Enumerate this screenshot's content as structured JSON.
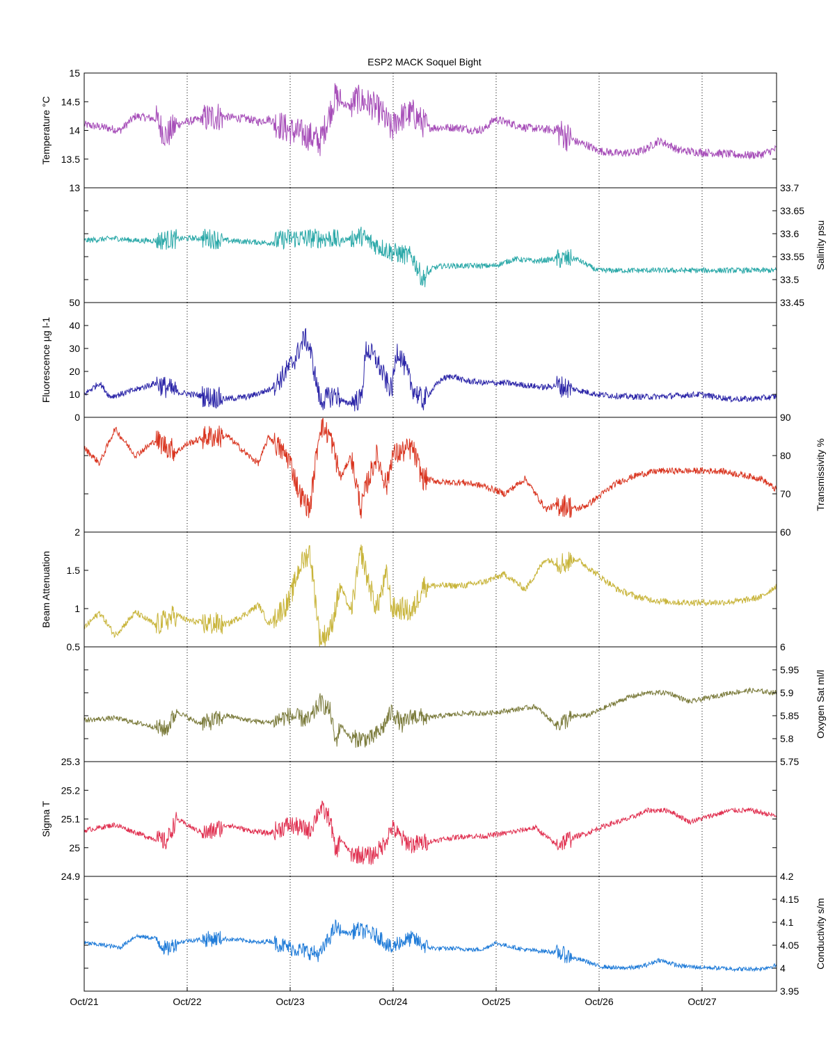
{
  "chart_data": {
    "type": "line",
    "title": "ESP2 MACK  Soquel Bight",
    "x_tick_labels": [
      "Oct/21",
      "Oct/22",
      "Oct/23",
      "Oct/24",
      "Oct/25",
      "Oct/26",
      "Oct/27"
    ],
    "x_range_days": [
      0,
      6.75
    ],
    "grid": "vertical dotted at day boundaries",
    "panels": [
      {
        "name": "Temperature °C",
        "ylabel": "Temperature °C",
        "axis_side": "left",
        "ylim": [
          13,
          15
        ],
        "ticks": [
          13,
          13.5,
          14,
          14.5,
          15
        ],
        "tick_labels": [
          "13",
          "13.5",
          "14",
          "14.5",
          "15"
        ],
        "color": "#a64db8",
        "noise": 0.12,
        "x": [
          0,
          0.2,
          0.35,
          0.5,
          0.7,
          0.8,
          0.9,
          1.0,
          1.3,
          1.6,
          1.7,
          1.8,
          2.0,
          2.2,
          2.3,
          2.45,
          2.5,
          2.6,
          2.65,
          2.8,
          2.9,
          3.0,
          3.05,
          3.2,
          3.35,
          3.45,
          3.6,
          3.7,
          3.8,
          3.9,
          4.0,
          4.3,
          4.6,
          4.7,
          4.8,
          4.9,
          5.0,
          5.2,
          5.4,
          5.5,
          5.6,
          5.7,
          5.8,
          6.0,
          6.2,
          6.4,
          6.5,
          6.6,
          6.75
        ],
        "y": [
          14.1,
          14.05,
          14.0,
          14.25,
          14.2,
          13.9,
          14.1,
          14.15,
          14.25,
          14.2,
          14.15,
          14.2,
          14.0,
          13.9,
          13.8,
          14.6,
          14.5,
          14.4,
          14.55,
          14.45,
          14.3,
          14.0,
          14.2,
          14.3,
          14.05,
          14.05,
          14.05,
          14.04,
          14.0,
          14.02,
          14.2,
          14.05,
          14.0,
          13.9,
          13.8,
          13.75,
          13.65,
          13.6,
          13.62,
          13.7,
          13.82,
          13.75,
          13.65,
          13.62,
          13.6,
          13.57,
          13.57,
          13.58,
          13.68
        ]
      },
      {
        "name": "Salinity psu",
        "ylabel": "Salinity psu",
        "axis_side": "right",
        "ylim": [
          33.45,
          33.7
        ],
        "ticks": [
          33.45,
          33.5,
          33.55,
          33.6,
          33.65,
          33.7
        ],
        "tick_labels": [
          "33.45",
          "33.5",
          "33.55",
          "33.6",
          "33.65",
          "33.7"
        ],
        "color": "#2aa8a8",
        "noise": 0.01,
        "x": [
          0,
          0.3,
          0.5,
          0.7,
          1.0,
          1.2,
          1.4,
          1.8,
          2.0,
          2.2,
          2.4,
          2.5,
          2.7,
          2.8,
          3.0,
          3.2,
          3.3,
          3.4,
          3.5,
          3.6,
          3.8,
          4.0,
          4.2,
          4.4,
          4.6,
          4.8,
          5.0,
          5.2,
          5.4,
          5.6,
          6.0,
          6.4,
          6.75
        ],
        "y": [
          33.585,
          33.59,
          33.585,
          33.585,
          33.59,
          33.59,
          33.585,
          33.58,
          33.59,
          33.59,
          33.59,
          33.585,
          33.595,
          33.58,
          33.56,
          33.55,
          33.5,
          33.525,
          33.53,
          33.53,
          33.53,
          33.53,
          33.545,
          33.54,
          33.545,
          33.545,
          33.52,
          33.52,
          33.52,
          33.52,
          33.52,
          33.52,
          33.52
        ]
      },
      {
        "name": "Fluorescence µg l-1",
        "ylabel": "Fluorescence µg l-1",
        "axis_side": "left",
        "ylim": [
          0,
          50
        ],
        "ticks": [
          0,
          10,
          20,
          30,
          40,
          50
        ],
        "tick_labels": [
          "0",
          "10",
          "20",
          "30",
          "40",
          "50"
        ],
        "color": "#2c26a8",
        "noise": 2.2,
        "x": [
          0,
          0.15,
          0.25,
          0.35,
          0.5,
          0.7,
          0.9,
          1.2,
          1.4,
          1.6,
          1.8,
          1.9,
          2.05,
          2.15,
          2.2,
          2.3,
          2.45,
          2.55,
          2.7,
          2.75,
          2.85,
          2.95,
          3.0,
          3.05,
          3.1,
          3.2,
          3.3,
          3.45,
          3.5,
          3.6,
          3.7,
          3.9,
          4.1,
          4.3,
          4.5,
          4.6,
          4.7,
          4.8,
          4.9,
          5.0,
          5.3,
          5.6,
          6.0,
          6.3,
          6.5,
          6.75
        ],
        "y": [
          10,
          15,
          9,
          10,
          12,
          15,
          11,
          9,
          8,
          9,
          12,
          16,
          25,
          35,
          30,
          7,
          10,
          6,
          8,
          30,
          25,
          15,
          12,
          30,
          25,
          13,
          7,
          15,
          17,
          18,
          16,
          15,
          15,
          14,
          13,
          14,
          13,
          12,
          11,
          10,
          9,
          9,
          10,
          8,
          8,
          9
        ]
      },
      {
        "name": "Transmissivity %",
        "ylabel": "Transmissivity %",
        "axis_side": "right",
        "ylim": [
          60,
          90
        ],
        "ticks": [
          60,
          70,
          80,
          90
        ],
        "tick_labels": [
          "60",
          "70",
          "80",
          "90"
        ],
        "color": "#d93520",
        "noise": 1.4,
        "x": [
          0,
          0.15,
          0.3,
          0.5,
          0.7,
          0.9,
          1.0,
          1.2,
          1.4,
          1.6,
          1.7,
          1.8,
          2.0,
          2.1,
          2.2,
          2.3,
          2.4,
          2.5,
          2.6,
          2.7,
          2.75,
          2.85,
          2.95,
          3.0,
          3.1,
          3.2,
          3.3,
          3.5,
          3.7,
          3.9,
          4.1,
          4.3,
          4.5,
          4.6,
          4.7,
          4.8,
          4.9,
          5.0,
          5.2,
          5.4,
          5.6,
          5.8,
          6.0,
          6.2,
          6.4,
          6.6,
          6.75
        ],
        "y": [
          82,
          78,
          87,
          80,
          84,
          81,
          83,
          85,
          85,
          80,
          78,
          85,
          79,
          70,
          66,
          88,
          85,
          74,
          80,
          66,
          72,
          80,
          72,
          80,
          81,
          82,
          74,
          73,
          73,
          72,
          70,
          74,
          66,
          67,
          67,
          66,
          67,
          69,
          73,
          75,
          76,
          76,
          76,
          76,
          75,
          74,
          71
        ]
      },
      {
        "name": "Beam Attenuation",
        "ylabel": "Beam Attenuation",
        "axis_side": "left",
        "ylim": [
          0.5,
          2
        ],
        "ticks": [
          0.5,
          1,
          1.5,
          2
        ],
        "tick_labels": [
          "0.5",
          "1",
          "1.5",
          "2"
        ],
        "color": "#c8b43a",
        "noise": 0.07,
        "x": [
          0,
          0.15,
          0.3,
          0.5,
          0.7,
          0.9,
          1.0,
          1.2,
          1.4,
          1.6,
          1.7,
          1.8,
          2.0,
          2.1,
          2.2,
          2.3,
          2.4,
          2.5,
          2.6,
          2.7,
          2.75,
          2.85,
          2.95,
          3.0,
          3.1,
          3.2,
          3.3,
          3.5,
          3.7,
          3.9,
          4.1,
          4.3,
          4.5,
          4.6,
          4.7,
          4.8,
          4.9,
          5.0,
          5.2,
          5.4,
          5.6,
          5.8,
          6.0,
          6.2,
          6.4,
          6.6,
          6.75
        ],
        "y": [
          0.75,
          0.95,
          0.65,
          0.95,
          0.78,
          0.92,
          0.85,
          0.8,
          0.8,
          0.95,
          1.05,
          0.8,
          1.1,
          1.55,
          1.75,
          0.6,
          0.72,
          1.3,
          0.95,
          1.75,
          1.45,
          1.0,
          1.45,
          1.0,
          1.0,
          0.95,
          1.3,
          1.3,
          1.3,
          1.35,
          1.45,
          1.25,
          1.65,
          1.6,
          1.6,
          1.65,
          1.55,
          1.45,
          1.25,
          1.15,
          1.1,
          1.08,
          1.08,
          1.08,
          1.1,
          1.15,
          1.3
        ]
      },
      {
        "name": "Oxygen Sat ml/l",
        "ylabel": "Oxygen Sat ml/l",
        "axis_side": "right",
        "ylim": [
          5.75,
          6
        ],
        "ticks": [
          5.75,
          5.8,
          5.85,
          5.9,
          5.95,
          6
        ],
        "tick_labels": [
          "5.75",
          "5.8",
          "5.85",
          "5.9",
          "5.95",
          "6"
        ],
        "color": "#7a7a3a",
        "noise": 0.009,
        "x": [
          0,
          0.3,
          0.6,
          0.8,
          0.9,
          1.1,
          1.2,
          1.4,
          1.6,
          1.8,
          2.0,
          2.2,
          2.3,
          2.4,
          2.45,
          2.5,
          2.6,
          2.8,
          2.9,
          3.0,
          3.1,
          3.2,
          3.35,
          3.5,
          3.7,
          3.9,
          4.1,
          4.4,
          4.6,
          4.8,
          4.9,
          5.1,
          5.3,
          5.5,
          5.7,
          5.9,
          6.1,
          6.3,
          6.5,
          6.75
        ],
        "y": [
          5.84,
          5.845,
          5.83,
          5.82,
          5.86,
          5.835,
          5.835,
          5.85,
          5.84,
          5.835,
          5.85,
          5.84,
          5.88,
          5.86,
          5.79,
          5.83,
          5.8,
          5.8,
          5.82,
          5.86,
          5.83,
          5.85,
          5.845,
          5.85,
          5.855,
          5.855,
          5.86,
          5.87,
          5.83,
          5.85,
          5.85,
          5.87,
          5.89,
          5.9,
          5.9,
          5.88,
          5.89,
          5.9,
          5.905,
          5.9
        ]
      },
      {
        "name": "Sigma T",
        "ylabel": "Sigma T",
        "axis_side": "left",
        "ylim": [
          24.9,
          25.3
        ],
        "ticks": [
          24.9,
          25,
          25.1,
          25.2,
          25.3
        ],
        "tick_labels": [
          "24.9",
          "25",
          "25.1",
          "25.2",
          "25.3"
        ],
        "color": "#e03050",
        "noise": 0.015,
        "x": [
          0,
          0.3,
          0.6,
          0.8,
          0.9,
          1.1,
          1.2,
          1.4,
          1.6,
          1.8,
          2.0,
          2.2,
          2.3,
          2.4,
          2.45,
          2.5,
          2.6,
          2.8,
          2.9,
          3.0,
          3.1,
          3.2,
          3.35,
          3.5,
          3.7,
          3.9,
          4.1,
          4.4,
          4.6,
          4.8,
          4.9,
          5.1,
          5.3,
          5.5,
          5.7,
          5.9,
          6.1,
          6.3,
          6.5,
          6.75
        ],
        "y": [
          25.06,
          25.08,
          25.04,
          25.02,
          25.1,
          25.06,
          25.05,
          25.08,
          25.06,
          25.05,
          25.08,
          25.06,
          25.14,
          25.1,
          24.98,
          25.03,
          24.98,
          24.97,
          25.0,
          25.07,
          25.03,
          25.01,
          25.02,
          25.03,
          25.04,
          25.04,
          25.05,
          25.07,
          25.01,
          25.04,
          25.05,
          25.08,
          25.1,
          25.13,
          25.13,
          25.09,
          25.11,
          25.13,
          25.13,
          25.11
        ]
      },
      {
        "name": "Conductivity s/m",
        "ylabel": "Conductivity s/m",
        "axis_side": "right",
        "ylim": [
          3.95,
          4.2
        ],
        "ticks": [
          3.95,
          4,
          4.05,
          4.1,
          4.15,
          4.2
        ],
        "tick_labels": [
          "3.95",
          "4",
          "4.05",
          "4.1",
          "4.15",
          "4.2"
        ],
        "color": "#1f7bd8",
        "noise": 0.008,
        "x": [
          0,
          0.2,
          0.35,
          0.5,
          0.7,
          0.8,
          0.9,
          1.0,
          1.3,
          1.6,
          1.7,
          1.8,
          2.0,
          2.2,
          2.3,
          2.45,
          2.5,
          2.6,
          2.65,
          2.8,
          2.9,
          3.0,
          3.05,
          3.2,
          3.35,
          3.45,
          3.6,
          3.7,
          3.8,
          3.9,
          4.0,
          4.3,
          4.6,
          4.7,
          4.8,
          4.9,
          5.0,
          5.2,
          5.4,
          5.5,
          5.6,
          5.7,
          5.8,
          6.0,
          6.2,
          6.4,
          6.5,
          6.6,
          6.75
        ],
        "y": [
          4.055,
          4.05,
          4.045,
          4.07,
          4.065,
          4.04,
          4.055,
          4.06,
          4.065,
          4.06,
          4.055,
          4.06,
          4.045,
          4.035,
          4.03,
          4.09,
          4.08,
          4.075,
          4.085,
          4.075,
          4.065,
          4.04,
          4.055,
          4.065,
          4.045,
          4.043,
          4.043,
          4.042,
          4.04,
          4.042,
          4.055,
          4.04,
          4.035,
          4.028,
          4.02,
          4.015,
          4.005,
          4.0,
          4.002,
          4.008,
          4.018,
          4.012,
          4.005,
          4.002,
          4.0,
          3.998,
          3.998,
          3.999,
          4.006
        ]
      }
    ]
  }
}
